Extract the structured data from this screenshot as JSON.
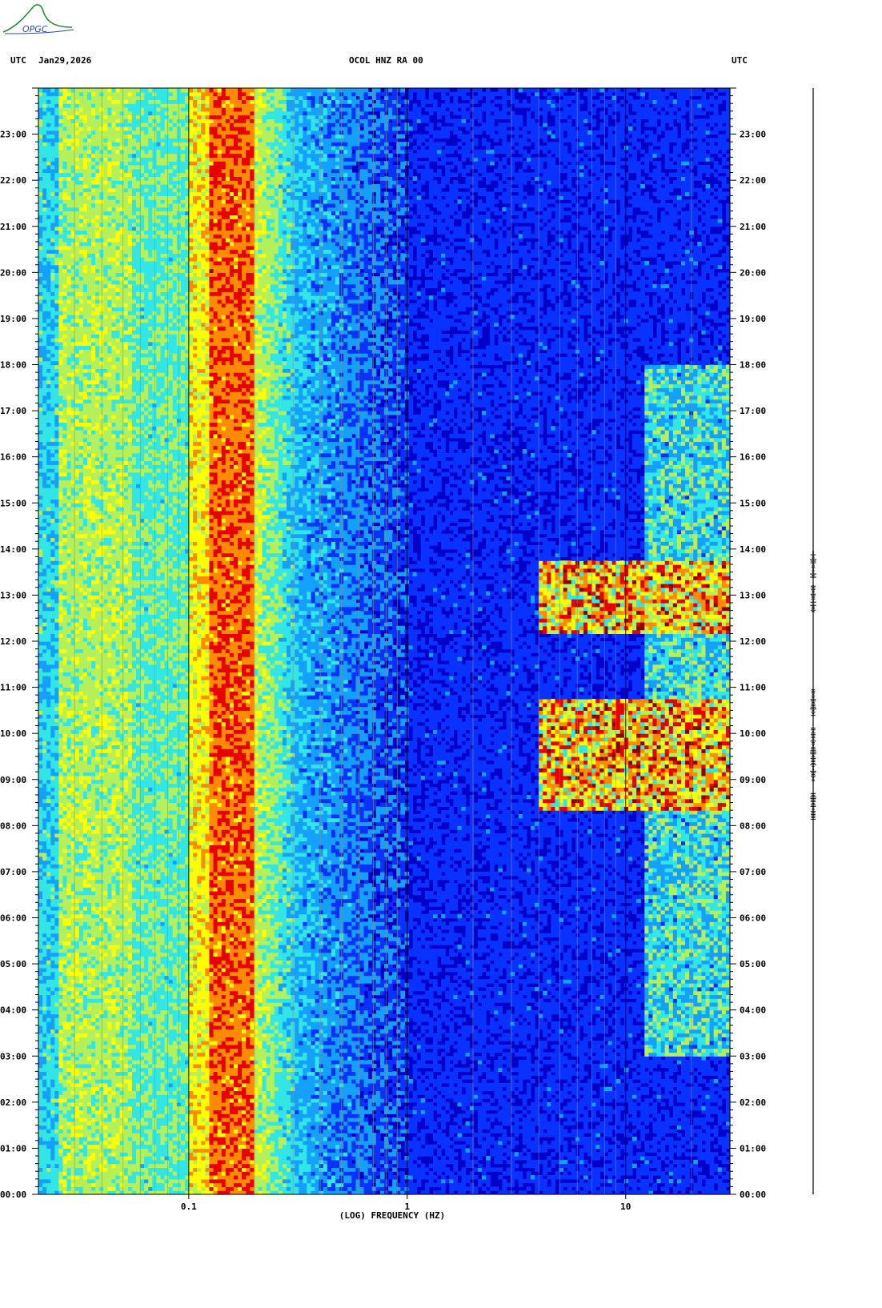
{
  "logo": {
    "text": "OPGC",
    "icon": "opgc-logo-icon",
    "color": "#2a8a3a"
  },
  "header": {
    "left_utc": "UTC",
    "date": "Jan29,2026",
    "station": "OCOL HNZ RA 00",
    "right_utc": "UTC"
  },
  "chart_data": {
    "type": "heatmap",
    "title": "OCOL HNZ RA 00",
    "xlabel": "(LOG) FREQUENCY (HZ)",
    "ylabel": "",
    "x_scale": "log",
    "xlim": [
      0.0205,
      30
    ],
    "x_tick_values": [
      0.1,
      1,
      10
    ],
    "x_tick_labels": [
      "0.1",
      "1",
      "10"
    ],
    "ylim": [
      "00:00",
      "24:00"
    ],
    "y_tick_labels": [
      "00:00",
      "01:00",
      "02:00",
      "03:00",
      "04:00",
      "05:00",
      "06:00",
      "07:00",
      "08:00",
      "09:00",
      "10:00",
      "11:00",
      "12:00",
      "13:00",
      "14:00",
      "15:00",
      "16:00",
      "17:00",
      "18:00",
      "19:00",
      "20:00",
      "21:00",
      "22:00",
      "23:00"
    ],
    "colormap": [
      "#0000c8",
      "#0a32ff",
      "#14a0ff",
      "#32e6e6",
      "#b4f05a",
      "#ffff00",
      "#ff8c00",
      "#e60000",
      "#8c0000"
    ],
    "grid": true,
    "energy_features": [
      {
        "label": "microseism band",
        "freq_hz": [
          0.1,
          0.2
        ],
        "time_h": [
          0,
          24
        ],
        "level": "high"
      },
      {
        "label": "long-period band",
        "freq_hz": [
          0.0205,
          0.1
        ],
        "time_h": [
          0,
          24
        ],
        "level": "medium"
      },
      {
        "label": "daytime cultural noise",
        "freq_hz": [
          12,
          30
        ],
        "time_h": [
          3,
          18
        ],
        "level": "medium"
      },
      {
        "label": "activity 08:20-09:40",
        "freq_hz": [
          4,
          30
        ],
        "time_h": [
          8.3,
          9.7
        ],
        "level": "high"
      },
      {
        "label": "activity 09:40-10:45",
        "freq_hz": [
          4,
          30
        ],
        "time_h": [
          9.7,
          10.75
        ],
        "level": "high"
      },
      {
        "label": "activity 12:15-13:45",
        "freq_hz": [
          4,
          30
        ],
        "time_h": [
          12.2,
          13.75
        ],
        "level": "high"
      }
    ],
    "trace_events_utc": [
      "08:25",
      "09:15",
      "09:50",
      "10:40",
      "12:55",
      "13:40"
    ]
  }
}
